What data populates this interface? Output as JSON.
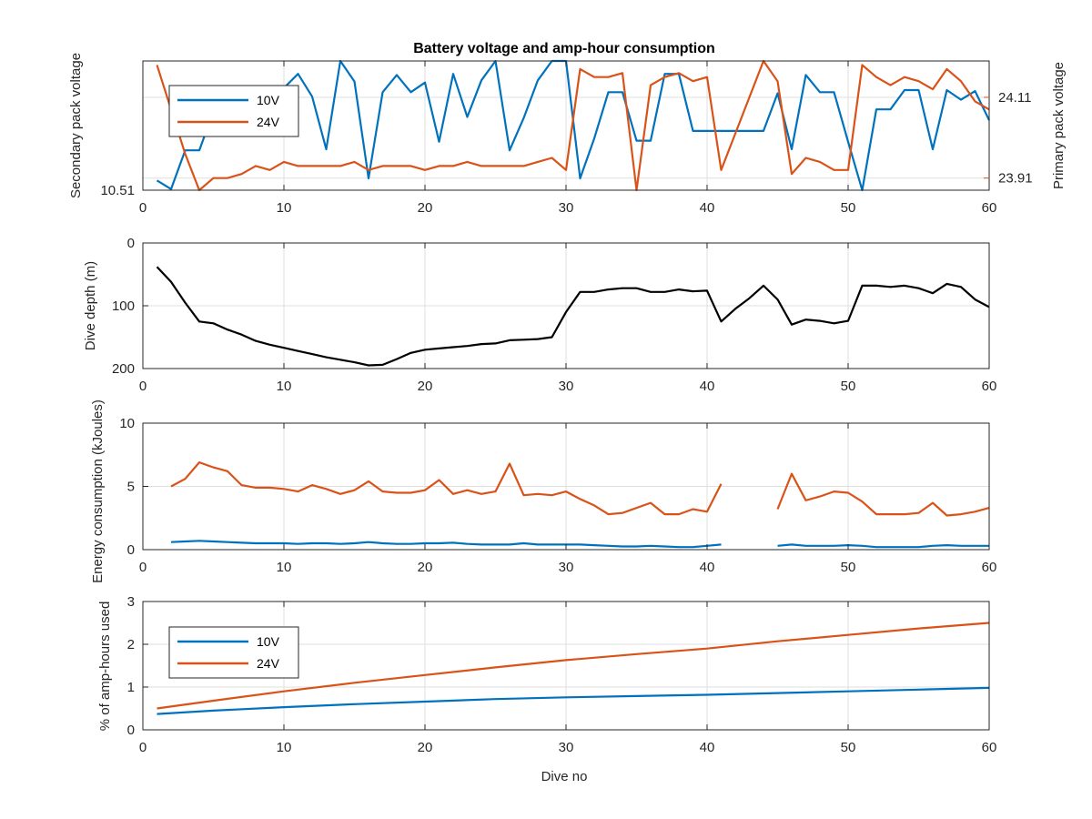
{
  "colors": {
    "blue": "#0072bd",
    "orange": "#d95319",
    "black": "#000000",
    "grid": "#dfdfdf",
    "axis": "#262626"
  },
  "chart_data": [
    {
      "id": "voltage",
      "type": "line",
      "title": "Battery voltage and amp-hour consumption",
      "xlim": [
        0,
        60
      ],
      "xticks": [
        "0",
        "10",
        "20",
        "30",
        "40",
        "50",
        "60"
      ],
      "left_axis": {
        "label": "Secondary pack voltage",
        "ylim": [
          10.51,
          10.63
        ],
        "ticks": [
          10.51
        ],
        "tick_labels": [
          "10.51"
        ]
      },
      "right_axis": {
        "label": "Primary pack voltage",
        "ylim": [
          23.88,
          24.2
        ],
        "ticks": [
          23.91,
          24.11
        ],
        "tick_labels": [
          "23.91",
          "24.11"
        ]
      },
      "grid": true,
      "legend": {
        "position": "top-left",
        "entries": [
          "10V",
          "24V"
        ]
      },
      "series": [
        {
          "name": "10V",
          "axis": "left",
          "color": "blue",
          "x": [
            1,
            2,
            3,
            4,
            5,
            6,
            7,
            8,
            9,
            10,
            11,
            12,
            13,
            14,
            15,
            16,
            17,
            18,
            19,
            20,
            21,
            22,
            23,
            24,
            25,
            26,
            27,
            28,
            29,
            30,
            31,
            32,
            33,
            34,
            35,
            36,
            37,
            38,
            39,
            40,
            41,
            42,
            43,
            44,
            45,
            46,
            47,
            48,
            49,
            50,
            51,
            52,
            53,
            54,
            55,
            56,
            57,
            58,
            59,
            60
          ],
          "y": [
            10.519,
            10.511,
            10.547,
            10.547,
            10.583,
            10.593,
            10.597,
            10.59,
            10.605,
            10.605,
            10.618,
            10.597,
            10.548,
            10.63,
            10.611,
            10.521,
            10.601,
            10.617,
            10.601,
            10.61,
            10.555,
            10.618,
            10.578,
            10.612,
            10.63,
            10.547,
            10.577,
            10.612,
            10.63,
            10.63,
            10.521,
            10.558,
            10.601,
            10.601,
            10.556,
            10.556,
            10.618,
            10.618,
            10.565,
            10.565,
            10.565,
            10.565,
            10.565,
            10.565,
            10.6,
            10.548,
            10.617,
            10.601,
            10.601,
            10.555,
            10.51,
            10.585,
            10.585,
            10.603,
            10.603,
            10.548,
            10.603,
            10.594,
            10.602,
            10.575
          ]
        },
        {
          "name": "24V",
          "axis": "right",
          "color": "orange",
          "x": [
            1,
            2,
            3,
            4,
            5,
            6,
            7,
            8,
            9,
            10,
            11,
            12,
            13,
            14,
            15,
            16,
            17,
            18,
            19,
            20,
            21,
            22,
            23,
            24,
            25,
            26,
            27,
            28,
            29,
            30,
            31,
            32,
            33,
            34,
            35,
            36,
            37,
            38,
            39,
            40,
            41,
            42,
            43,
            44,
            45,
            46,
            47,
            48,
            49,
            50,
            51,
            52,
            53,
            54,
            55,
            56,
            57,
            58,
            59,
            60
          ],
          "y": [
            24.19,
            24.08,
            23.97,
            23.88,
            23.91,
            23.91,
            23.92,
            23.94,
            23.93,
            23.95,
            23.94,
            23.94,
            23.94,
            23.94,
            23.95,
            23.93,
            23.94,
            23.94,
            23.94,
            23.93,
            23.94,
            23.94,
            23.95,
            23.94,
            23.94,
            23.94,
            23.94,
            23.95,
            23.96,
            23.93,
            24.18,
            24.16,
            24.16,
            24.17,
            23.88,
            24.14,
            24.16,
            24.17,
            24.15,
            24.16,
            23.93,
            24.02,
            24.11,
            24.2,
            24.15,
            23.92,
            23.96,
            23.95,
            23.93,
            23.93,
            24.19,
            24.16,
            24.14,
            24.16,
            24.15,
            24.13,
            24.18,
            24.15,
            24.1,
            24.08
          ]
        }
      ]
    },
    {
      "id": "depth",
      "type": "line",
      "ylabel": "Dive depth (m)",
      "xlim": [
        0,
        60
      ],
      "ylim": [
        0,
        200
      ],
      "y_reversed": true,
      "xticks": [
        "0",
        "10",
        "20",
        "30",
        "40",
        "50",
        "60"
      ],
      "yticks": [
        "0",
        "100",
        "200"
      ],
      "grid": true,
      "series": [
        {
          "color": "black",
          "x": [
            1,
            2,
            3,
            4,
            5,
            6,
            7,
            8,
            9,
            10,
            11,
            12,
            13,
            14,
            15,
            16,
            17,
            18,
            19,
            20,
            21,
            22,
            23,
            24,
            25,
            26,
            27,
            28,
            29,
            30,
            31,
            32,
            33,
            34,
            35,
            36,
            37,
            38,
            39,
            40,
            41,
            42,
            43,
            44,
            45,
            46,
            47,
            48,
            49,
            50,
            51,
            52,
            53,
            54,
            55,
            56,
            57,
            58,
            59,
            60
          ],
          "y": [
            38,
            62,
            95,
            125,
            128,
            138,
            146,
            156,
            162,
            167,
            172,
            177,
            182,
            186,
            190,
            195,
            194,
            185,
            175,
            170,
            168,
            166,
            164,
            161,
            160,
            155,
            154,
            153,
            150,
            110,
            78,
            78,
            74,
            72,
            72,
            78,
            78,
            74,
            77,
            76,
            125,
            105,
            88,
            68,
            90,
            130,
            122,
            124,
            128,
            124,
            68,
            68,
            70,
            68,
            72,
            80,
            65,
            70,
            90,
            102
          ]
        }
      ]
    },
    {
      "id": "energy",
      "type": "line",
      "ylabel": "Energy consumption (kJoules)",
      "xlim": [
        0,
        60
      ],
      "ylim": [
        0,
        10
      ],
      "xticks": [
        "0",
        "10",
        "20",
        "30",
        "40",
        "50",
        "60"
      ],
      "yticks": [
        "0",
        "5",
        "10"
      ],
      "grid": true,
      "series": [
        {
          "name": "10V",
          "color": "blue",
          "x": [
            2,
            3,
            4,
            5,
            6,
            7,
            8,
            9,
            10,
            11,
            12,
            13,
            14,
            15,
            16,
            17,
            18,
            19,
            20,
            21,
            22,
            23,
            24,
            25,
            26,
            27,
            28,
            29,
            30,
            31,
            32,
            33,
            34,
            35,
            36,
            37,
            38,
            39,
            40,
            41,
            null,
            45,
            46,
            47,
            48,
            49,
            50,
            51,
            52,
            53,
            54,
            55,
            56,
            57,
            58,
            59,
            60
          ],
          "y": [
            0.6,
            0.65,
            0.7,
            0.65,
            0.6,
            0.55,
            0.5,
            0.5,
            0.5,
            0.45,
            0.5,
            0.5,
            0.45,
            0.5,
            0.6,
            0.5,
            0.45,
            0.45,
            0.5,
            0.5,
            0.55,
            0.45,
            0.4,
            0.4,
            0.4,
            0.5,
            0.4,
            0.4,
            0.4,
            0.4,
            0.35,
            0.3,
            0.25,
            0.25,
            0.3,
            0.25,
            0.2,
            0.2,
            0.3,
            0.4,
            null,
            0.3,
            0.4,
            0.3,
            0.3,
            0.3,
            0.35,
            0.3,
            0.2,
            0.2,
            0.2,
            0.2,
            0.3,
            0.35,
            0.3,
            0.3,
            0.3
          ]
        },
        {
          "name": "24V",
          "color": "orange",
          "x": [
            2,
            3,
            4,
            5,
            6,
            7,
            8,
            9,
            10,
            11,
            12,
            13,
            14,
            15,
            16,
            17,
            18,
            19,
            20,
            21,
            22,
            23,
            24,
            25,
            26,
            27,
            28,
            29,
            30,
            31,
            32,
            33,
            34,
            35,
            36,
            37,
            38,
            39,
            40,
            41,
            null,
            45,
            46,
            47,
            48,
            49,
            50,
            51,
            52,
            53,
            54,
            55,
            56,
            57,
            58,
            59,
            60
          ],
          "y": [
            5.0,
            5.6,
            6.9,
            6.5,
            6.2,
            5.1,
            4.9,
            4.9,
            4.8,
            4.6,
            5.1,
            4.8,
            4.4,
            4.7,
            5.4,
            4.6,
            4.5,
            4.5,
            4.7,
            5.5,
            4.4,
            4.7,
            4.4,
            4.6,
            6.8,
            4.3,
            4.4,
            4.3,
            4.6,
            4.0,
            3.5,
            2.8,
            2.9,
            3.3,
            3.7,
            2.8,
            2.8,
            3.2,
            3.0,
            5.2,
            null,
            3.2,
            6.0,
            3.9,
            4.2,
            4.6,
            4.5,
            3.8,
            2.8,
            2.8,
            2.8,
            2.9,
            3.7,
            2.7,
            2.8,
            3.0,
            3.3
          ]
        }
      ]
    },
    {
      "id": "amphours",
      "type": "line",
      "xlabel": "Dive no",
      "ylabel": "% of amp-hours used",
      "xlim": [
        0,
        60
      ],
      "ylim": [
        0,
        3
      ],
      "xticks": [
        "0",
        "10",
        "20",
        "30",
        "40",
        "50",
        "60"
      ],
      "yticks": [
        "0",
        "1",
        "2",
        "3"
      ],
      "grid": true,
      "legend": {
        "position": "top-left",
        "entries": [
          "10V",
          "24V"
        ]
      },
      "series": [
        {
          "name": "10V",
          "color": "blue",
          "x": [
            1,
            5,
            10,
            15,
            20,
            25,
            30,
            35,
            40,
            45,
            50,
            55,
            60
          ],
          "y": [
            0.37,
            0.45,
            0.53,
            0.6,
            0.66,
            0.72,
            0.76,
            0.79,
            0.82,
            0.86,
            0.9,
            0.94,
            0.98
          ]
        },
        {
          "name": "24V",
          "color": "orange",
          "x": [
            1,
            5,
            10,
            15,
            20,
            25,
            30,
            35,
            40,
            45,
            50,
            55,
            60
          ],
          "y": [
            0.5,
            0.68,
            0.9,
            1.1,
            1.28,
            1.46,
            1.63,
            1.77,
            1.9,
            2.07,
            2.22,
            2.37,
            2.5
          ]
        }
      ]
    }
  ]
}
